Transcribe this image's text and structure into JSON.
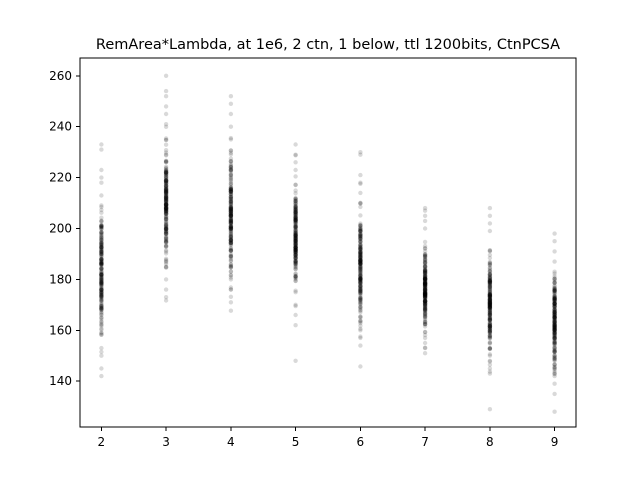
{
  "chart_data": {
    "type": "scatter",
    "title": "RemArea*Lambda, at 1e6, 2 ctn, 1 below, ttl 1200bits, CtnPCSA",
    "xlabel": "",
    "ylabel": "",
    "xlim": [
      1.67,
      9.33
    ],
    "ylim": [
      122,
      267
    ],
    "xticks": [
      2,
      3,
      4,
      5,
      6,
      7,
      8,
      9
    ],
    "yticks": [
      140,
      160,
      180,
      200,
      220,
      240,
      260
    ],
    "grid": false,
    "point_color": "#000000",
    "point_alpha": 0.15,
    "columns": [
      {
        "x": 2,
        "center": 183,
        "spread": 12,
        "outliers": [
          233,
          231,
          223,
          220,
          218,
          153,
          150,
          145,
          142
        ]
      },
      {
        "x": 3,
        "center": 210,
        "spread": 11,
        "outliers": [
          260,
          254,
          252,
          248,
          245,
          241,
          185,
          180,
          176,
          173
        ]
      },
      {
        "x": 4,
        "center": 205,
        "spread": 11,
        "outliers": [
          252,
          249,
          245,
          240,
          235,
          185,
          180,
          176,
          171
        ]
      },
      {
        "x": 5,
        "center": 196,
        "spread": 10,
        "outliers": [
          233,
          229,
          226,
          223,
          170,
          166,
          162,
          148
        ]
      },
      {
        "x": 6,
        "center": 186,
        "spread": 10,
        "outliers": [
          230,
          229,
          221,
          218,
          214,
          165,
          160,
          157,
          154
        ]
      },
      {
        "x": 7,
        "center": 176,
        "spread": 8,
        "outliers": [
          208,
          207,
          205,
          203,
          200,
          157,
          155,
          153,
          151
        ]
      },
      {
        "x": 8,
        "center": 170,
        "spread": 9,
        "outliers": [
          208,
          205,
          202,
          199,
          150,
          148,
          145,
          143,
          129
        ]
      },
      {
        "x": 9,
        "center": 163,
        "spread": 9,
        "outliers": [
          198,
          195,
          191,
          187,
          145,
          142,
          139,
          135,
          128
        ]
      }
    ]
  }
}
